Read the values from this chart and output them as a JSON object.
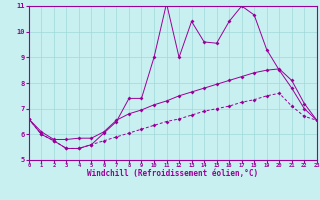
{
  "xlabel": "Windchill (Refroidissement éolien,°C)",
  "background_color": "#c8f0f0",
  "line_color": "#990099",
  "xlim": [
    0,
    23
  ],
  "ylim": [
    5,
    11
  ],
  "xticks": [
    0,
    1,
    2,
    3,
    4,
    5,
    6,
    7,
    8,
    9,
    10,
    11,
    12,
    13,
    14,
    15,
    16,
    17,
    18,
    19,
    20,
    21,
    22,
    23
  ],
  "yticks": [
    5,
    6,
    7,
    8,
    9,
    10,
    11
  ],
  "line1_x": [
    0,
    1,
    2,
    3,
    4,
    5,
    6,
    7,
    8,
    9,
    10,
    11,
    12,
    13,
    14,
    15,
    16,
    17,
    18,
    19,
    20,
    21,
    22,
    23
  ],
  "line1_y": [
    6.6,
    6.0,
    5.75,
    5.45,
    5.45,
    5.6,
    6.05,
    6.5,
    7.4,
    7.4,
    9.0,
    11.1,
    9.0,
    10.4,
    9.6,
    9.55,
    10.4,
    11.0,
    10.65,
    9.3,
    8.5,
    7.8,
    7.0,
    6.55
  ],
  "line2_x": [
    0,
    1,
    2,
    3,
    4,
    5,
    6,
    7,
    8,
    9,
    10,
    11,
    12,
    13,
    14,
    15,
    16,
    17,
    18,
    19,
    20,
    21,
    22,
    23
  ],
  "line2_y": [
    6.6,
    6.1,
    5.8,
    5.8,
    5.85,
    5.85,
    6.1,
    6.55,
    6.8,
    6.95,
    7.15,
    7.3,
    7.5,
    7.65,
    7.8,
    7.95,
    8.1,
    8.25,
    8.4,
    8.5,
    8.55,
    8.1,
    7.2,
    6.55
  ],
  "line3_x": [
    0,
    1,
    2,
    3,
    4,
    5,
    6,
    7,
    8,
    9,
    10,
    11,
    12,
    13,
    14,
    15,
    16,
    17,
    18,
    19,
    20,
    21,
    22,
    23
  ],
  "line3_y": [
    6.6,
    6.0,
    5.75,
    5.45,
    5.45,
    5.6,
    5.75,
    5.9,
    6.05,
    6.2,
    6.35,
    6.5,
    6.6,
    6.75,
    6.9,
    7.0,
    7.1,
    7.25,
    7.35,
    7.5,
    7.6,
    7.1,
    6.7,
    6.55
  ],
  "grid_color": "#a0d8d8",
  "marker": "D",
  "markersize": 2.0,
  "linewidth": 0.7
}
